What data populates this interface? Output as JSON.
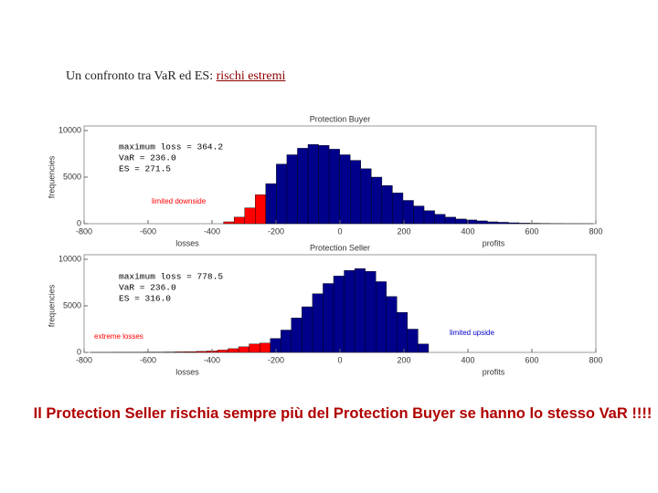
{
  "slide_title": "Un confronto tra VaR ed ES:",
  "slide_title_emphasis": "rischi estremi",
  "caption": "Il Protection Seller rischia sempre più del Protection Buyer se hanno lo stesso VaR !!!!",
  "chart_data": [
    {
      "type": "histogram",
      "title": "Protection Buyer",
      "ylabel": "frequencies",
      "xlabel_left": "losses",
      "xlabel_right": "profits",
      "bins": [
        -364,
        -331,
        -298,
        -265,
        -232,
        -199,
        -166,
        -133,
        -100,
        -67,
        -34,
        -1,
        32,
        65,
        98,
        131,
        164,
        197,
        230,
        263,
        296,
        329,
        362,
        395,
        428,
        461,
        494,
        527,
        560,
        593,
        626,
        659,
        692,
        725,
        758,
        791
      ],
      "counts": [
        200,
        700,
        1700,
        3100,
        4300,
        6400,
        7400,
        8100,
        8500,
        8400,
        8000,
        7400,
        6800,
        5900,
        5000,
        4100,
        3300,
        2500,
        1900,
        1400,
        1000,
        700,
        500,
        400,
        300,
        200,
        150,
        100,
        60,
        40,
        20,
        10,
        5,
        3,
        1
      ],
      "colors": [
        "#ff0000",
        "#ff0000",
        "#ff0000",
        "#ff0000",
        "#00008b",
        "#00008b",
        "#00008b",
        "#00008b",
        "#00008b",
        "#00008b",
        "#00008b",
        "#00008b",
        "#00008b",
        "#00008b",
        "#00008b",
        "#00008b",
        "#00008b",
        "#00008b",
        "#00008b",
        "#00008b",
        "#00008b",
        "#00008b",
        "#00008b",
        "#00008b",
        "#00008b",
        "#00008b",
        "#00008b",
        "#00008b",
        "#00008b",
        "#00008b",
        "#00008b",
        "#00008b",
        "#00008b",
        "#00008b",
        "#00008b"
      ],
      "xlim": [
        -800,
        800
      ],
      "xticks": [
        -800,
        -600,
        -400,
        -200,
        0,
        200,
        400,
        600,
        800
      ],
      "ylim": [
        0,
        10000
      ],
      "yticks": [
        0,
        5000,
        10000
      ],
      "annotations": [
        {
          "text": "maximum loss = 364.2",
          "color": "#000000"
        },
        {
          "text": "VaR = 236.0",
          "color": "#000000"
        },
        {
          "text": "ES = 271.5",
          "color": "#000000"
        },
        {
          "text": "limited downside",
          "color": "#ff0000"
        }
      ]
    },
    {
      "type": "histogram",
      "title": "Protection Seller",
      "ylabel": "frequencies",
      "xlabel_left": "losses",
      "xlabel_right": "profits",
      "bins": [
        -779,
        -746,
        -713,
        -680,
        -647,
        -614,
        -581,
        -548,
        -515,
        -482,
        -449,
        -416,
        -383,
        -350,
        -317,
        -284,
        -251,
        -218,
        -185,
        -152,
        -119,
        -86,
        -53,
        -20,
        13,
        46,
        79,
        112,
        145,
        178,
        211,
        244,
        277
      ],
      "counts": [
        5,
        5,
        10,
        10,
        15,
        20,
        30,
        40,
        60,
        80,
        110,
        150,
        250,
        400,
        600,
        900,
        1000,
        1500,
        2400,
        3700,
        4900,
        6300,
        7400,
        8200,
        8800,
        9000,
        8700,
        7600,
        6000,
        4300,
        2500,
        900
      ],
      "colors": [
        "#ff0000",
        "#ff0000",
        "#ff0000",
        "#ff0000",
        "#ff0000",
        "#ff0000",
        "#ff0000",
        "#ff0000",
        "#ff0000",
        "#ff0000",
        "#ff0000",
        "#ff0000",
        "#ff0000",
        "#ff0000",
        "#ff0000",
        "#ff0000",
        "#ff0000",
        "#00008b",
        "#00008b",
        "#00008b",
        "#00008b",
        "#00008b",
        "#00008b",
        "#00008b",
        "#00008b",
        "#00008b",
        "#00008b",
        "#00008b",
        "#00008b",
        "#00008b",
        "#00008b",
        "#00008b"
      ],
      "xlim": [
        -800,
        800
      ],
      "xticks": [
        -800,
        -600,
        -400,
        -200,
        0,
        200,
        400,
        600,
        800
      ],
      "ylim": [
        0,
        10000
      ],
      "yticks": [
        0,
        5000,
        10000
      ],
      "annotations": [
        {
          "text": "maximum loss = 778.5",
          "color": "#000000"
        },
        {
          "text": "VaR = 236.0",
          "color": "#000000"
        },
        {
          "text": "ES = 316.0",
          "color": "#000000"
        },
        {
          "text": "extreme losses",
          "color": "#ff0000"
        },
        {
          "text": "limited upside",
          "color": "#0000cc"
        }
      ]
    }
  ]
}
